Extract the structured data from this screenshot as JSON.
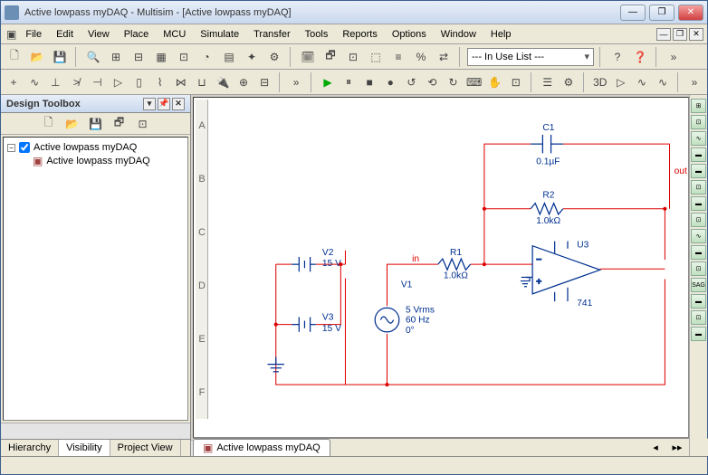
{
  "window": {
    "title": "Active lowpass myDAQ - Multisim - [Active lowpass myDAQ]",
    "min": "—",
    "max": "❐",
    "close": "✕"
  },
  "menu": {
    "items": [
      "File",
      "Edit",
      "View",
      "Place",
      "MCU",
      "Simulate",
      "Transfer",
      "Tools",
      "Reports",
      "Options",
      "Window",
      "Help"
    ]
  },
  "toolbar1": {
    "combo": "--- In Use List ---",
    "icons": [
      "🗋",
      "📂",
      "💾",
      "|",
      "🔍",
      "⊞",
      "⊟",
      "▦",
      "⊡",
      "◔",
      "▤",
      "✦",
      "⚙",
      "|",
      "🗓",
      "🗗",
      "⊡",
      "⬚",
      "≡",
      "%",
      "⇄",
      "|",
      "combo",
      "|",
      "?",
      "❓",
      "|",
      "»"
    ]
  },
  "toolbar2": {
    "icons": [
      "+",
      "∿",
      "⊥",
      "≯",
      "⊣",
      "▷",
      "▯",
      "⌇",
      "⋈",
      "⊔",
      "🔌",
      "⊕",
      "⊟",
      "|",
      "»",
      "|",
      "▶",
      "⏸",
      "■",
      "●",
      "↺",
      "⟲",
      "↻",
      "⌨",
      "✋",
      "⊡",
      "|",
      "☰",
      "⚙",
      "|",
      "3D",
      "▷",
      "∿",
      "∿",
      "|",
      "»"
    ]
  },
  "sidebar": {
    "title": "Design Toolbox",
    "toolbar_icons": [
      "🗋",
      "📂",
      "💾",
      "🗗",
      "⊡"
    ],
    "tree": {
      "root": "Active lowpass myDAQ",
      "child": "Active lowpass myDAQ"
    },
    "tabs": [
      "Hierarchy",
      "Visibility",
      "Project View"
    ],
    "active_tab": 1
  },
  "schematic": {
    "colors": {
      "wire": "#d00000",
      "component": "#003090",
      "bg": "#ffffff"
    },
    "components": {
      "C1": {
        "name": "C1",
        "value": "0.1µF"
      },
      "R2": {
        "name": "R2",
        "value": "1.0kΩ"
      },
      "R1": {
        "name": "R1",
        "value": "1.0kΩ"
      },
      "V2": {
        "name": "V2",
        "value": "15 V"
      },
      "V3": {
        "name": "V3",
        "value": "15 V"
      },
      "V1": {
        "name": "V1",
        "value1": "5 Vrms",
        "value2": "60 Hz",
        "value3": "0°"
      },
      "U3": {
        "name": "U3",
        "value": "741"
      }
    },
    "labels": {
      "in": "in",
      "out": "out"
    },
    "ruler_letters": [
      "A",
      "B",
      "C",
      "D",
      "E",
      "F"
    ]
  },
  "doc_tab": "Active lowpass myDAQ",
  "right_strip": [
    "⊞",
    "⊡",
    "∿",
    "▬",
    "▬",
    "⊡",
    "▬",
    "⊡",
    "∿",
    "▬",
    "⊡",
    "SAG",
    "▬",
    "⊡",
    "▬"
  ]
}
